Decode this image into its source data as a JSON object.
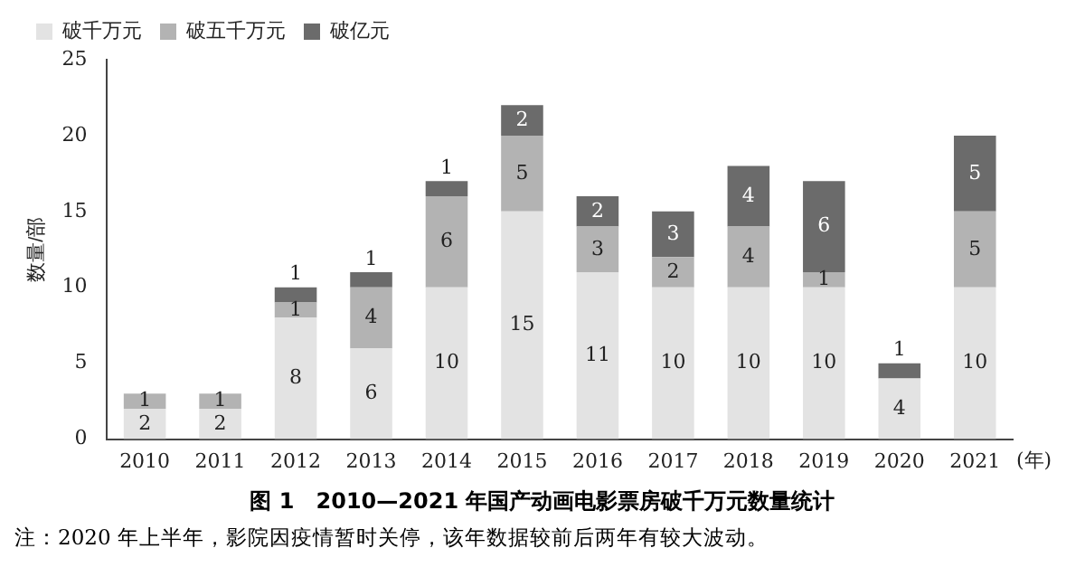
{
  "chart_data": {
    "type": "bar",
    "stacked": true,
    "title": "图 1　2010—2021 年国产动画电影票房破千万元数量统计",
    "xlabel": "(年)",
    "ylabel": "数量/部",
    "categories": [
      "2010",
      "2011",
      "2012",
      "2013",
      "2014",
      "2015",
      "2016",
      "2017",
      "2018",
      "2019",
      "2020",
      "2021"
    ],
    "series": [
      {
        "name": "破千万元",
        "color": "#e3e3e3",
        "values": [
          2,
          2,
          8,
          6,
          10,
          15,
          11,
          10,
          10,
          10,
          4,
          10
        ]
      },
      {
        "name": "破五千万元",
        "color": "#b3b3b3",
        "values": [
          1,
          1,
          1,
          4,
          6,
          5,
          3,
          2,
          4,
          1,
          null,
          5
        ]
      },
      {
        "name": "破亿元",
        "color": "#6b6b6b",
        "values": [
          null,
          null,
          1,
          1,
          1,
          2,
          2,
          3,
          4,
          6,
          1,
          5
        ]
      }
    ],
    "ylim": [
      0,
      25
    ],
    "yticks": [
      0,
      5,
      10,
      15,
      20,
      25
    ],
    "grid": false,
    "legend": "top left",
    "data_labels": true,
    "annotations": [
      "注：2020 年上半年，影院因疫情暂时关停，该年数据较前后两年有较大波动。"
    ]
  }
}
